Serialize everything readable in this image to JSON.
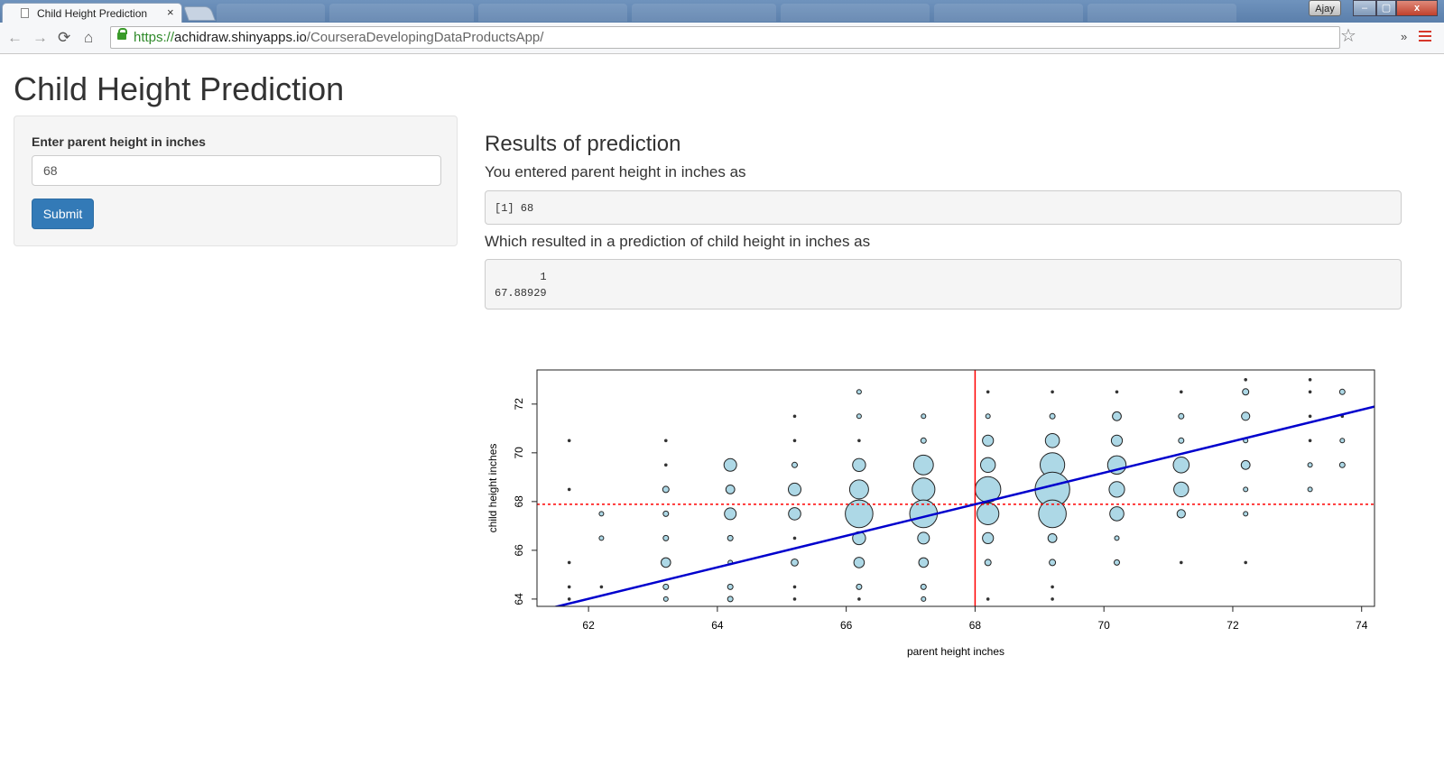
{
  "browser": {
    "tab_title": "Child Height Prediction",
    "tab_close": "×",
    "user": "Ajay",
    "url_proto": "https://",
    "url_host": "achidraw.shinyapps.io",
    "url_path": "/CourseraDevelopingDataProductsApp/",
    "window_minimize": "–",
    "window_maximize": "▢",
    "window_close": "x"
  },
  "page": {
    "title": "Child Height Prediction"
  },
  "sidebar": {
    "input_label": "Enter parent height in inches",
    "input_value": "68",
    "submit_label": "Submit"
  },
  "main": {
    "results_title": "Results of prediction",
    "entered_text": "You entered parent height in inches as",
    "entered_output": "[1] 68",
    "prediction_text": "Which resulted in a prediction of child height in inches as",
    "prediction_output": "       1\n67.88929"
  },
  "colors": {
    "accent": "#337ab7",
    "bubble_fill": "#add8e6",
    "regression_line": "#0000cd",
    "marker_line": "#ff0000"
  },
  "chart_data": {
    "type": "scatter",
    "xlabel": "parent height inches",
    "ylabel": "child height inches",
    "xlim": [
      61.2,
      74.2
    ],
    "ylim": [
      63.7,
      73.4
    ],
    "xticks": [
      62,
      64,
      66,
      68,
      70,
      72,
      74
    ],
    "yticks": [
      64,
      66,
      68,
      70,
      72
    ],
    "vline_x": 68,
    "hline_y": 67.88929,
    "regression": {
      "intercept": 23.94,
      "slope": 0.6463
    },
    "points": [
      [
        61.7,
        70.5,
        1
      ],
      [
        61.7,
        68.5,
        1
      ],
      [
        61.7,
        65.5,
        1
      ],
      [
        61.7,
        64.5,
        1
      ],
      [
        61.7,
        64.0,
        1
      ],
      [
        62.2,
        67.5,
        2
      ],
      [
        62.2,
        66.5,
        2
      ],
      [
        62.2,
        64.5,
        1
      ],
      [
        63.2,
        70.5,
        1
      ],
      [
        63.2,
        69.5,
        1
      ],
      [
        63.2,
        68.5,
        4
      ],
      [
        63.2,
        67.5,
        3
      ],
      [
        63.2,
        66.5,
        3
      ],
      [
        63.2,
        65.5,
        9
      ],
      [
        63.2,
        64.5,
        3
      ],
      [
        63.2,
        64.0,
        2
      ],
      [
        64.2,
        69.5,
        16
      ],
      [
        64.2,
        68.5,
        8
      ],
      [
        64.2,
        67.5,
        14
      ],
      [
        64.2,
        66.5,
        3
      ],
      [
        64.2,
        65.5,
        2
      ],
      [
        64.2,
        64.5,
        3
      ],
      [
        64.2,
        64.0,
        3
      ],
      [
        65.2,
        71.5,
        1
      ],
      [
        65.2,
        70.5,
        1
      ],
      [
        65.2,
        69.5,
        3
      ],
      [
        65.2,
        68.5,
        16
      ],
      [
        65.2,
        67.5,
        15
      ],
      [
        65.2,
        66.5,
        1
      ],
      [
        65.2,
        65.5,
        5
      ],
      [
        65.2,
        64.5,
        1
      ],
      [
        65.2,
        64.0,
        1
      ],
      [
        66.2,
        72.5,
        2
      ],
      [
        66.2,
        71.5,
        2
      ],
      [
        66.2,
        70.5,
        1
      ],
      [
        66.2,
        69.5,
        17
      ],
      [
        66.2,
        68.5,
        36
      ],
      [
        66.2,
        67.5,
        76
      ],
      [
        66.2,
        66.5,
        17
      ],
      [
        66.2,
        65.5,
        11
      ],
      [
        66.2,
        64.5,
        3
      ],
      [
        66.2,
        64.0,
        1
      ],
      [
        67.2,
        71.5,
        2
      ],
      [
        67.2,
        70.5,
        3
      ],
      [
        67.2,
        69.5,
        39
      ],
      [
        67.2,
        68.5,
        52
      ],
      [
        67.2,
        67.5,
        76
      ],
      [
        67.2,
        66.5,
        14
      ],
      [
        67.2,
        65.5,
        9
      ],
      [
        67.2,
        64.5,
        3
      ],
      [
        67.2,
        64.0,
        2
      ],
      [
        68.2,
        72.5,
        1
      ],
      [
        68.2,
        71.5,
        2
      ],
      [
        68.2,
        70.5,
        12
      ],
      [
        68.2,
        69.5,
        22
      ],
      [
        68.2,
        68.5,
        66
      ],
      [
        68.2,
        67.5,
        48
      ],
      [
        68.2,
        66.5,
        12
      ],
      [
        68.2,
        65.5,
        4
      ],
      [
        68.2,
        64.0,
        1
      ],
      [
        69.2,
        72.5,
        1
      ],
      [
        69.2,
        71.5,
        3
      ],
      [
        69.2,
        70.5,
        20
      ],
      [
        69.2,
        69.5,
        60
      ],
      [
        69.2,
        68.5,
        120
      ],
      [
        69.2,
        67.5,
        76
      ],
      [
        69.2,
        66.5,
        8
      ],
      [
        69.2,
        65.5,
        4
      ],
      [
        69.2,
        64.5,
        1
      ],
      [
        69.2,
        64.0,
        1
      ],
      [
        70.2,
        72.5,
        1
      ],
      [
        70.2,
        71.5,
        8
      ],
      [
        70.2,
        70.5,
        12
      ],
      [
        70.2,
        69.5,
        34
      ],
      [
        70.2,
        68.5,
        24
      ],
      [
        70.2,
        67.5,
        20
      ],
      [
        70.2,
        66.5,
        2
      ],
      [
        70.2,
        65.5,
        3
      ],
      [
        71.2,
        72.5,
        1
      ],
      [
        71.2,
        71.5,
        3
      ],
      [
        71.2,
        70.5,
        3
      ],
      [
        71.2,
        69.5,
        25
      ],
      [
        71.2,
        68.5,
        22
      ],
      [
        71.2,
        67.5,
        7
      ],
      [
        71.2,
        65.5,
        1
      ],
      [
        72.2,
        73.0,
        1
      ],
      [
        72.2,
        72.5,
        4
      ],
      [
        72.2,
        71.5,
        7
      ],
      [
        72.2,
        70.5,
        2
      ],
      [
        72.2,
        69.5,
        8
      ],
      [
        72.2,
        68.5,
        2
      ],
      [
        72.2,
        67.5,
        2
      ],
      [
        72.2,
        65.5,
        1
      ],
      [
        73.2,
        73.0,
        1
      ],
      [
        73.2,
        72.5,
        1
      ],
      [
        73.2,
        71.5,
        1
      ],
      [
        73.2,
        70.5,
        1
      ],
      [
        73.2,
        69.5,
        2
      ],
      [
        73.2,
        68.5,
        2
      ],
      [
        73.7,
        72.5,
        3
      ],
      [
        73.7,
        71.5,
        1
      ],
      [
        73.7,
        70.5,
        2
      ],
      [
        73.7,
        69.5,
        3
      ]
    ]
  }
}
